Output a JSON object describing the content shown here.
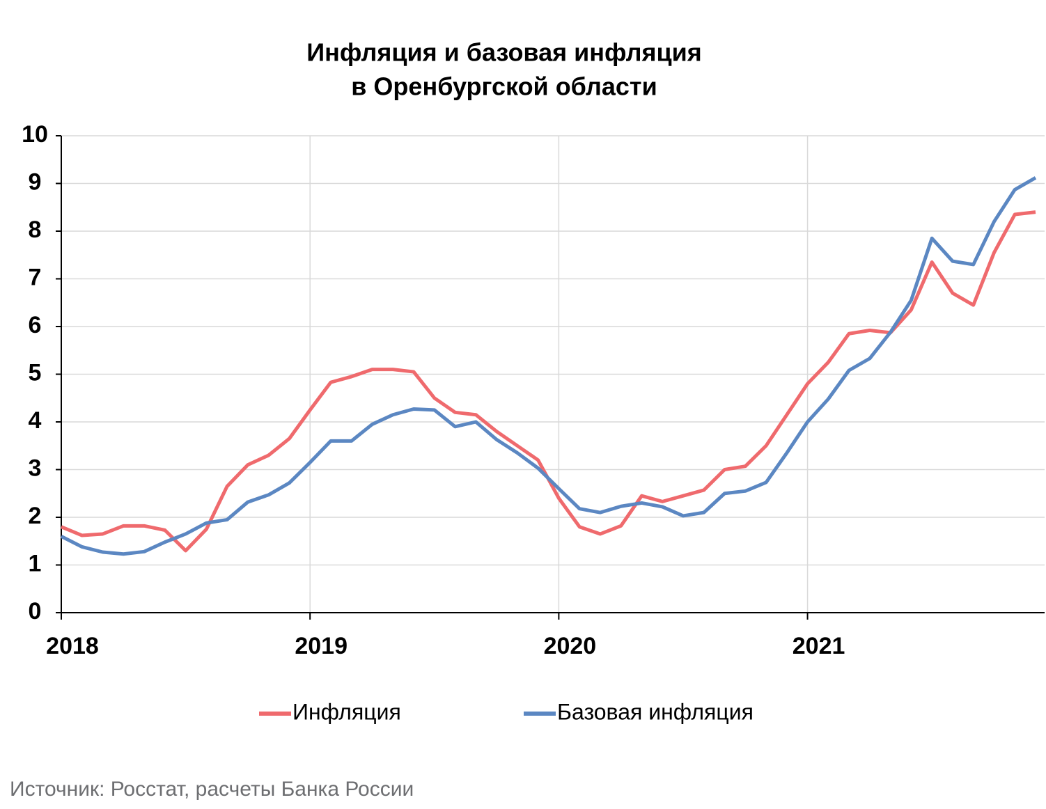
{
  "chart_data": {
    "type": "line",
    "title": [
      "Инфляция и базовая инфляция",
      "в  Оренбургской области"
    ],
    "source": "Источник: Росстат, расчеты Банка России",
    "categories": [
      "2018",
      null,
      null,
      null,
      null,
      null,
      null,
      null,
      null,
      null,
      null,
      null,
      "2019",
      null,
      null,
      null,
      null,
      null,
      null,
      null,
      null,
      null,
      null,
      null,
      "2020",
      null,
      null,
      null,
      null,
      null,
      null,
      null,
      null,
      null,
      null,
      null,
      "2021",
      null,
      null,
      null,
      null,
      null,
      null,
      null,
      null,
      null,
      null,
      null
    ],
    "series": [
      {
        "name": "Инфляция",
        "color": "#ef6a6d",
        "values": [
          1.8,
          1.62,
          1.65,
          1.82,
          1.82,
          1.73,
          1.3,
          1.75,
          2.65,
          3.1,
          3.3,
          3.65,
          4.25,
          4.83,
          4.95,
          5.1,
          5.1,
          5.05,
          4.5,
          4.2,
          4.15,
          3.8,
          3.5,
          3.2,
          2.4,
          1.8,
          1.65,
          1.82,
          2.45,
          2.33,
          2.45,
          2.57,
          3.0,
          3.07,
          3.5,
          4.15,
          4.8,
          5.25,
          5.85,
          5.92,
          5.87,
          6.35,
          7.35,
          6.7,
          6.45,
          7.55,
          8.35,
          8.4
        ]
      },
      {
        "name": "Базовая инфляция",
        "color": "#5b87c2",
        "values": [
          1.6,
          1.38,
          1.27,
          1.23,
          1.28,
          1.48,
          1.65,
          1.88,
          1.95,
          2.32,
          2.47,
          2.72,
          3.15,
          3.6,
          3.6,
          3.95,
          4.15,
          4.27,
          4.25,
          3.9,
          4.0,
          3.63,
          3.35,
          3.03,
          2.6,
          2.18,
          2.1,
          2.23,
          2.3,
          2.22,
          2.03,
          2.1,
          2.5,
          2.55,
          2.73,
          3.35,
          4.0,
          4.48,
          5.08,
          5.33,
          5.88,
          6.55,
          7.85,
          7.37,
          7.3,
          8.2,
          8.87,
          9.12
        ]
      }
    ],
    "ylim": [
      0,
      10
    ],
    "yticks": [
      0,
      1,
      2,
      3,
      4,
      5,
      6,
      7,
      8,
      9,
      10
    ],
    "grid": true,
    "legend": "bottom"
  }
}
